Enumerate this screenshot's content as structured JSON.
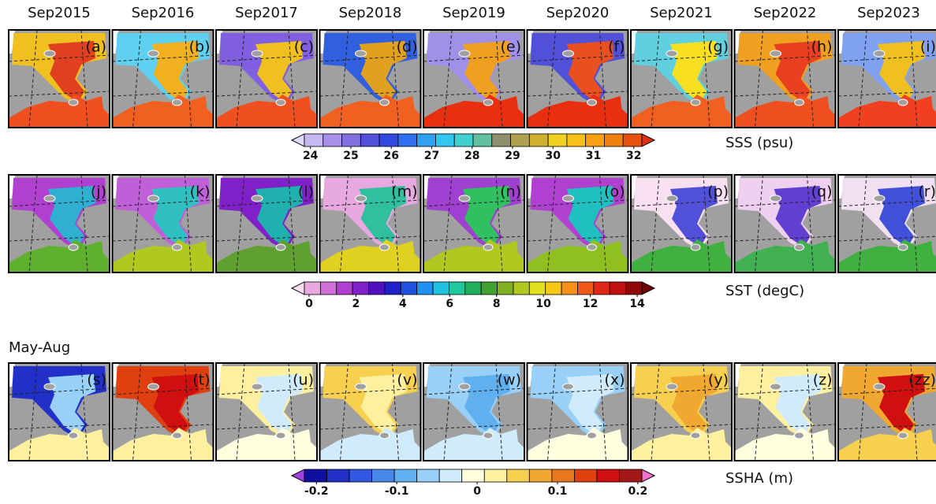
{
  "columns": [
    "Sep2015",
    "Sep2016",
    "Sep2017",
    "Sep2018",
    "Sep2019",
    "Sep2020",
    "Sep2021",
    "Sep2022",
    "Sep2023"
  ],
  "rows": [
    {
      "panels": [
        "(a)",
        "(b)",
        "(c)",
        "(d)",
        "(e)",
        "(f)",
        "(g)",
        "(h)",
        "(i)"
      ],
      "colorbar": {
        "label": "SSS (psu)",
        "range": [
          23.85,
          32.2
        ],
        "ticks": [
          24,
          25,
          26,
          27,
          28,
          29,
          30,
          31,
          32
        ],
        "colors": [
          "#e0d8f8",
          "#c8b8f0",
          "#a890e8",
          "#8070e0",
          "#5050d8",
          "#3048e0",
          "#3070f0",
          "#30a0f0",
          "#30c8f0",
          "#40d0d0",
          "#60c0a0",
          "#909070",
          "#b0a050",
          "#d0b030",
          "#f0d020",
          "#f8c018",
          "#f8a010",
          "#f08010",
          "#e85010",
          "#e03010"
        ]
      }
    },
    {
      "panels": [
        "(j)",
        "(k)",
        "(l)",
        "(m)",
        "(n)",
        "(o)",
        "(p)",
        "(q)",
        "(r)"
      ],
      "colorbar": {
        "label": "SST (degC)",
        "range": [
          -0.2,
          14.2
        ],
        "ticks": [
          0,
          2,
          4,
          6,
          8,
          10,
          12,
          14
        ],
        "colors": [
          "#f8e0f0",
          "#e8a8e0",
          "#d070d8",
          "#b040d0",
          "#8020c8",
          "#5010c0",
          "#2020c8",
          "#2050e0",
          "#2090f0",
          "#20c0e0",
          "#20c8a0",
          "#20b060",
          "#40a030",
          "#80b020",
          "#b0c820",
          "#e0e020",
          "#f8c818",
          "#f89018",
          "#f05818",
          "#e02818",
          "#c01010",
          "#900808",
          "#700000"
        ]
      }
    },
    {
      "title": "May-Aug",
      "panels": [
        "(s)",
        "(t)",
        "(u)",
        "(v)",
        "(w)",
        "(x)",
        "(y)",
        "(z)",
        "(zz)"
      ],
      "colorbar": {
        "label": "SSHA (m)",
        "range": [
          -0.215,
          0.205
        ],
        "ticks": [
          -0.2,
          -0.1,
          0,
          0.1,
          0.2
        ],
        "colors": [
          "#a040e0",
          "#1010a0",
          "#2030c8",
          "#3058e0",
          "#4888e8",
          "#60b0f0",
          "#98d0f8",
          "#d0ecfc",
          "#ffffe0",
          "#fff0a0",
          "#f8d050",
          "#f0a830",
          "#e87820",
          "#e04010",
          "#d01010",
          "#a01818",
          "#f070d0"
        ]
      }
    }
  ]
}
